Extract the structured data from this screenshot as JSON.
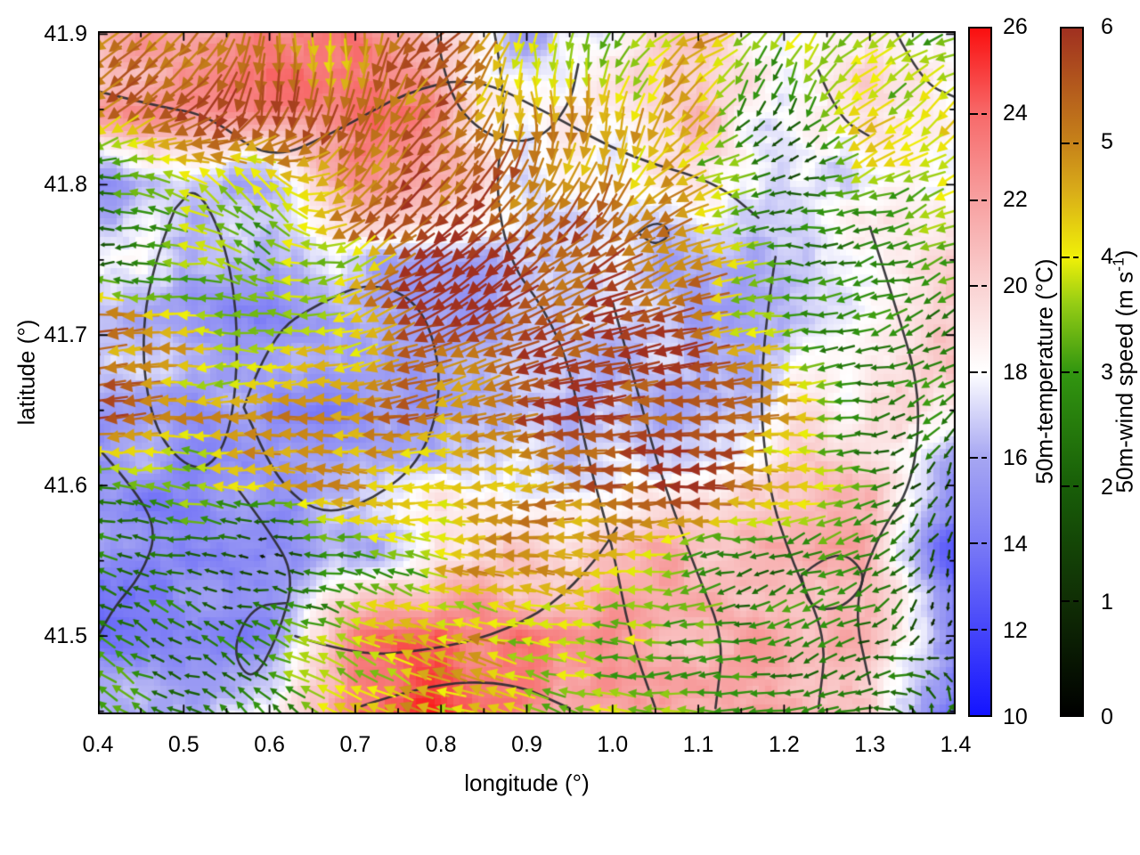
{
  "chart_data": {
    "type": "quiver_heatmap",
    "title": "",
    "xlabel": "longitude (°)",
    "ylabel": "latitude (°)",
    "xlim": [
      0.4,
      1.4
    ],
    "ylim": [
      41.448,
      41.902
    ],
    "grid_on": false,
    "background_color": "#ffffff",
    "axis_color": "#000000",
    "contour_color": "#2b2b30",
    "xticks": {
      "values": [
        0.4,
        0.5,
        0.6,
        0.7,
        0.8,
        0.9,
        1.0,
        1.1,
        1.2,
        1.3,
        1.4
      ],
      "labels": [
        "0.4",
        "0.5",
        "0.6",
        "0.7",
        "0.8",
        "0.9",
        "1.0",
        "1.1",
        "1.2",
        "1.3",
        "1.4"
      ],
      "minor": [
        0.45,
        0.55,
        0.65,
        0.75,
        0.85,
        0.95,
        1.05,
        1.15,
        1.25,
        1.35
      ]
    },
    "yticks": {
      "values": [
        41.5,
        41.6,
        41.7,
        41.8,
        41.9
      ],
      "labels": [
        "41.5",
        "41.6",
        "41.7",
        "41.8",
        "41.9"
      ],
      "minor": [
        41.45,
        41.55,
        41.65,
        41.75,
        41.85
      ]
    },
    "colorbars": [
      {
        "label": "50m-temperature (°C)",
        "min": 10,
        "max": 26,
        "ticks": {
          "values": [
            10,
            12,
            14,
            16,
            18,
            20,
            22,
            24,
            26
          ],
          "labels": [
            "10",
            "12",
            "14",
            "16",
            "18",
            "20",
            "22",
            "24",
            "26"
          ]
        },
        "stops": [
          {
            "v": 10,
            "c": "#1414ff"
          },
          {
            "v": 12,
            "c": "#4646fa"
          },
          {
            "v": 14,
            "c": "#7a7af6"
          },
          {
            "v": 16,
            "c": "#a6a6f2"
          },
          {
            "v": 18,
            "c": "#ffffff"
          },
          {
            "v": 20,
            "c": "#fad2d2"
          },
          {
            "v": 22,
            "c": "#f7a0a0"
          },
          {
            "v": 24,
            "c": "#f76a6a"
          },
          {
            "v": 26,
            "c": "#fa0f0f"
          }
        ]
      },
      {
        "label": "50m-wind speed (m s⁻¹)",
        "label_main": "50m-wind speed (m s",
        "label_sup": "-1",
        "label_close": ")",
        "min": 0,
        "max": 6,
        "ticks": {
          "values": [
            0,
            1,
            2,
            3,
            4,
            5,
            6
          ],
          "labels": [
            "0",
            "1",
            "2",
            "3",
            "4",
            "5",
            "6"
          ]
        },
        "stops": [
          {
            "v": 0,
            "c": "#000000"
          },
          {
            "v": 1,
            "c": "#102e05"
          },
          {
            "v": 2,
            "c": "#185e08"
          },
          {
            "v": 3,
            "c": "#329610"
          },
          {
            "v": 3.6,
            "c": "#96cd14"
          },
          {
            "v": 4,
            "c": "#f0f008"
          },
          {
            "v": 4.6,
            "c": "#d8aa19"
          },
          {
            "v": 5,
            "c": "#c68219"
          },
          {
            "v": 6,
            "c": "#a03020"
          }
        ]
      }
    ],
    "grid": {
      "lons": [
        0.4,
        0.5,
        0.6,
        0.7,
        0.8,
        0.9,
        1.0,
        1.1,
        1.2,
        1.3,
        1.4
      ],
      "lats": [
        41.9,
        41.85,
        41.8,
        41.75,
        41.7,
        41.65,
        41.6,
        41.55,
        41.5,
        41.45
      ]
    },
    "temperature": [
      [
        21,
        22,
        24,
        23,
        19,
        16,
        18,
        20,
        18,
        20,
        18
      ],
      [
        22,
        23,
        23,
        24,
        22,
        18,
        19,
        21,
        17,
        19,
        17
      ],
      [
        15,
        17,
        16,
        22,
        21,
        17,
        18,
        19,
        17,
        18,
        18
      ],
      [
        19,
        16,
        16,
        17,
        16,
        16,
        17,
        16,
        17,
        18,
        20
      ],
      [
        16,
        16,
        15,
        16,
        16,
        16,
        16,
        16,
        17,
        19,
        21
      ],
      [
        16,
        16,
        15,
        15,
        16,
        17,
        16,
        17,
        18,
        19,
        20
      ],
      [
        16,
        15,
        15,
        16,
        18,
        17,
        18,
        19,
        20,
        21,
        15
      ],
      [
        15,
        14,
        15,
        16,
        20,
        20,
        21,
        21,
        21,
        21,
        13
      ],
      [
        14,
        15,
        14,
        23,
        24,
        23,
        22,
        22,
        21,
        21,
        14
      ],
      [
        16,
        16,
        18,
        24,
        25,
        22,
        22,
        21,
        22,
        20,
        13
      ]
    ],
    "wind_speed": [
      [
        5.5,
        5.0,
        5.5,
        4.5,
        5.5,
        4.0,
        3.0,
        4.5,
        4.0,
        3.0,
        3.5
      ],
      [
        5.5,
        5.5,
        5.5,
        5.0,
        5.5,
        4.5,
        4.0,
        4.5,
        1.5,
        4.0,
        4.0
      ],
      [
        2.5,
        3.0,
        4.0,
        5.5,
        5.5,
        5.5,
        5.0,
        4.0,
        2.0,
        3.5,
        4.0
      ],
      [
        2.0,
        3.5,
        3.0,
        4.0,
        6.0,
        6.0,
        5.5,
        5.0,
        3.0,
        2.5,
        3.0
      ],
      [
        5.5,
        4.0,
        3.0,
        4.5,
        6.0,
        6.0,
        6.0,
        5.0,
        3.5,
        2.5,
        3.0
      ],
      [
        5.5,
        4.5,
        4.5,
        4.5,
        5.0,
        5.5,
        6.0,
        6.0,
        4.5,
        2.5,
        2.5
      ],
      [
        3.0,
        3.5,
        4.5,
        4.5,
        4.5,
        5.0,
        5.5,
        6.0,
        4.0,
        3.0,
        1.0
      ],
      [
        2.5,
        2.5,
        0.5,
        3.0,
        4.0,
        4.5,
        4.0,
        3.0,
        2.5,
        2.5,
        0.5
      ],
      [
        2.5,
        2.0,
        2.5,
        4.0,
        4.5,
        4.0,
        3.5,
        3.0,
        2.5,
        2.0,
        0.5
      ],
      [
        2.5,
        3.0,
        2.5,
        4.0,
        4.5,
        4.0,
        3.5,
        3.0,
        2.5,
        2.5,
        2.5
      ]
    ],
    "wind_dir_deg": [
      [
        215,
        225,
        270,
        280,
        210,
        260,
        250,
        200,
        240,
        220,
        200
      ],
      [
        220,
        215,
        265,
        255,
        215,
        280,
        260,
        230,
        250,
        210,
        220
      ],
      [
        180,
        150,
        120,
        230,
        225,
        240,
        250,
        200,
        190,
        200,
        210
      ],
      [
        180,
        170,
        160,
        210,
        215,
        220,
        210,
        200,
        185,
        190,
        200
      ],
      [
        185,
        180,
        170,
        200,
        205,
        200,
        195,
        190,
        185,
        195,
        210
      ],
      [
        190,
        185,
        180,
        185,
        190,
        190,
        185,
        185,
        180,
        185,
        220
      ],
      [
        170,
        175,
        180,
        180,
        185,
        185,
        180,
        180,
        175,
        185,
        250
      ],
      [
        160,
        165,
        170,
        175,
        170,
        175,
        180,
        190,
        200,
        210,
        260
      ],
      [
        150,
        155,
        160,
        160,
        165,
        170,
        175,
        185,
        195,
        200,
        250
      ],
      [
        140,
        150,
        130,
        150,
        160,
        165,
        170,
        180,
        190,
        200,
        30
      ]
    ],
    "contours": [
      [
        [
          0.4,
          41.862
        ],
        [
          0.47,
          41.852
        ],
        [
          0.53,
          41.846
        ],
        [
          0.6,
          41.815
        ],
        [
          0.68,
          41.836
        ],
        [
          0.76,
          41.862
        ],
        [
          0.84,
          41.872
        ],
        [
          0.93,
          41.846
        ],
        [
          1.02,
          41.818
        ],
        [
          1.12,
          41.802
        ],
        [
          1.17,
          41.778
        ]
      ],
      [
        [
          0.795,
          41.902
        ],
        [
          0.805,
          41.862
        ],
        [
          0.85,
          41.832
        ],
        [
          0.91,
          41.827
        ],
        [
          0.95,
          41.852
        ],
        [
          0.96,
          41.88
        ]
      ],
      [
        [
          0.49,
          41.784
        ],
        [
          0.46,
          41.742
        ],
        [
          0.45,
          41.682
        ],
        [
          0.47,
          41.63
        ],
        [
          0.52,
          41.606
        ],
        [
          0.555,
          41.632
        ],
        [
          0.565,
          41.7
        ],
        [
          0.55,
          41.76
        ],
        [
          0.515,
          41.8
        ],
        [
          0.49,
          41.784
        ]
      ],
      [
        [
          0.57,
          41.652
        ],
        [
          0.6,
          41.7
        ],
        [
          0.66,
          41.722
        ],
        [
          0.72,
          41.736
        ],
        [
          0.78,
          41.72
        ],
        [
          0.803,
          41.668
        ],
        [
          0.78,
          41.618
        ],
        [
          0.72,
          41.59
        ],
        [
          0.66,
          41.58
        ],
        [
          0.61,
          41.602
        ],
        [
          0.57,
          41.652
        ]
      ],
      [
        [
          0.862,
          41.902
        ],
        [
          0.878,
          41.852
        ],
        [
          0.862,
          41.8
        ],
        [
          0.88,
          41.748
        ],
        [
          0.92,
          41.718
        ],
        [
          0.95,
          41.68
        ],
        [
          0.97,
          41.62
        ],
        [
          1.0,
          41.56
        ],
        [
          1.02,
          41.5
        ],
        [
          1.05,
          41.452
        ]
      ],
      [
        [
          1.0,
          41.722
        ],
        [
          1.03,
          41.66
        ],
        [
          1.06,
          41.6
        ],
        [
          1.1,
          41.54
        ],
        [
          1.13,
          41.498
        ],
        [
          1.12,
          41.452
        ]
      ],
      [
        [
          1.19,
          41.752
        ],
        [
          1.17,
          41.68
        ],
        [
          1.18,
          41.6
        ],
        [
          1.21,
          41.548
        ],
        [
          1.25,
          41.5
        ],
        [
          1.24,
          41.452
        ]
      ],
      [
        [
          1.3,
          41.772
        ],
        [
          1.33,
          41.72
        ],
        [
          1.36,
          41.66
        ],
        [
          1.35,
          41.6
        ],
        [
          1.31,
          41.568
        ],
        [
          1.28,
          41.52
        ],
        [
          1.3,
          41.468
        ]
      ],
      [
        [
          0.56,
          41.6
        ],
        [
          0.6,
          41.57
        ],
        [
          0.63,
          41.54
        ],
        [
          0.61,
          41.5
        ],
        [
          0.58,
          41.468
        ],
        [
          0.555,
          41.49
        ],
        [
          0.58,
          41.52
        ],
        [
          0.62,
          41.522
        ]
      ],
      [
        [
          0.63,
          41.5
        ],
        [
          0.7,
          41.487
        ],
        [
          0.78,
          41.49
        ],
        [
          0.86,
          41.5
        ],
        [
          0.93,
          41.52
        ],
        [
          0.98,
          41.55
        ],
        [
          1.005,
          41.572
        ]
      ],
      [
        [
          0.7,
          41.452
        ],
        [
          0.78,
          41.468
        ],
        [
          0.88,
          41.47
        ],
        [
          0.95,
          41.452
        ]
      ],
      [
        [
          1.03,
          41.768
        ],
        [
          1.05,
          41.777
        ],
        [
          1.07,
          41.768
        ],
        [
          1.05,
          41.759
        ],
        [
          1.03,
          41.768
        ]
      ],
      [
        [
          1.22,
          41.54
        ],
        [
          1.26,
          41.56
        ],
        [
          1.3,
          41.54
        ],
        [
          1.27,
          41.518
        ],
        [
          1.23,
          41.518
        ],
        [
          1.22,
          41.54
        ]
      ],
      [
        [
          0.4,
          41.625
        ],
        [
          0.44,
          41.6
        ],
        [
          0.47,
          41.57
        ],
        [
          0.45,
          41.54
        ],
        [
          0.42,
          41.52
        ],
        [
          0.4,
          41.5
        ]
      ],
      [
        [
          1.33,
          41.902
        ],
        [
          1.36,
          41.868
        ],
        [
          1.4,
          41.858
        ]
      ],
      [
        [
          1.24,
          41.876
        ],
        [
          1.262,
          41.845
        ],
        [
          1.3,
          41.832
        ]
      ]
    ]
  }
}
